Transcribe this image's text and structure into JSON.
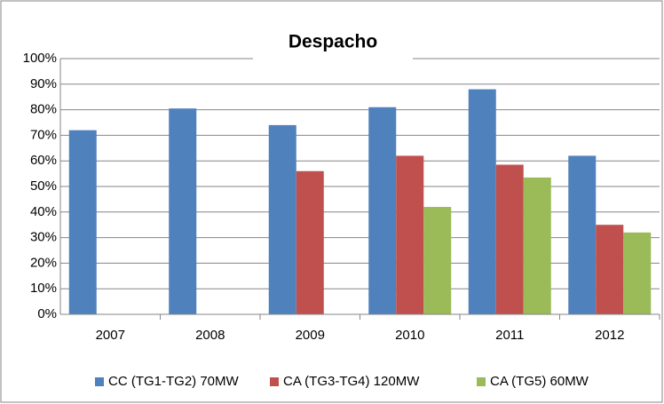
{
  "chart_data": {
    "type": "bar",
    "title": "Despacho",
    "categories": [
      "2007",
      "2008",
      "2009",
      "2010",
      "2011",
      "2012"
    ],
    "series": [
      {
        "name": "CC (TG1-TG2) 70MW",
        "color": "#4f81bd",
        "values": [
          72,
          80.5,
          74,
          81,
          88,
          62
        ]
      },
      {
        "name": "CA (TG3-TG4) 120MW",
        "color": "#c0504d",
        "values": [
          null,
          null,
          56,
          62,
          58.5,
          35
        ]
      },
      {
        "name": "CA (TG5) 60MW",
        "color": "#9bbb59",
        "values": [
          null,
          null,
          null,
          42,
          53.5,
          32
        ]
      }
    ],
    "ylim": [
      0,
      100
    ],
    "yticks": [
      {
        "value": 0,
        "label": "0%"
      },
      {
        "value": 10,
        "label": "10%"
      },
      {
        "value": 20,
        "label": "20%"
      },
      {
        "value": 30,
        "label": "30%"
      },
      {
        "value": 40,
        "label": "40%"
      },
      {
        "value": 50,
        "label": "50%"
      },
      {
        "value": 60,
        "label": "60%"
      },
      {
        "value": 70,
        "label": "70%"
      },
      {
        "value": 80,
        "label": "80%"
      },
      {
        "value": 90,
        "label": "90%"
      },
      {
        "value": 100,
        "label": "100%"
      }
    ],
    "grid": true,
    "legend": "bottom"
  }
}
